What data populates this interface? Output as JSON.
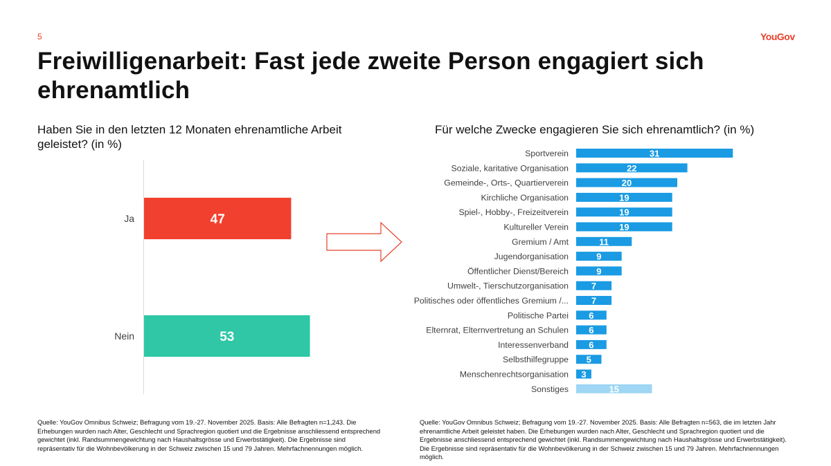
{
  "page": {
    "number": "5",
    "logo": "YouGov",
    "title": "Freiwilligenarbeit: Fast jede zweite Person engagiert sich ehrenamtlich"
  },
  "left": {
    "subtitle": "Haben Sie in den letzten 12 Monaten ehrenamtliche Arbeit geleistet? (in %)",
    "source": "Quelle: YouGov Omnibus Schweiz; Befragung vom 19.-27. November 2025. Basis: Alle Befragten n=1,243. Die Erhebungen wurden nach Alter, Geschlecht und Sprachregion quotiert und die Ergebnisse anschliessend entsprechend gewichtet (inkl. Randsummengewichtung nach Haushaltsgrösse und Erwerbstätigkeit). Die Ergebnisse sind repräsentativ für die Wohnbevölkerung in der Schweiz zwischen 15 und 79 Jahren. Mehrfachnennungen möglich."
  },
  "right": {
    "subtitle": "Für welche Zwecke engagieren Sie sich ehrenamtlich? (in %)",
    "source": "Quelle: YouGov Omnibus Schweiz; Befragung vom 19.-27. November 2025. Basis: Alle Befragten n=563, die im letzten Jahr ehrenamtliche Arbeit geleistet haben. Die Erhebungen wurden nach Alter, Geschlecht und Sprachregion quotiert und die Ergebnisse anschliessend entsprechend gewichtet (inkl. Randsummengewichtung nach Haushaltsgrösse und Erwerbstätigkeit). Die Ergebnisse sind repräsentativ für die Wohnbevölkerung in der Schweiz zwischen 15 und 79 Jahren. Mehrfachnennungen möglich."
  },
  "colors": {
    "ja": "#f2402f",
    "nein": "#2fc7a6",
    "bar": "#1a9be3",
    "other": "#9ed6f4",
    "accent": "#e8402a",
    "axis": "#d9d9d9"
  },
  "chart_data": [
    {
      "type": "bar",
      "orientation": "horizontal",
      "title": "Haben Sie in den letzten 12 Monaten ehrenamtliche Arbeit geleistet? (in %)",
      "categories": [
        "Ja",
        "Nein"
      ],
      "values": [
        47,
        53
      ],
      "xlim": [
        0,
        100
      ],
      "unit": "%"
    },
    {
      "type": "bar",
      "orientation": "horizontal",
      "title": "Für welche Zwecke engagieren Sie sich ehrenamtlich? (in %)",
      "categories": [
        "Sportverein",
        "Soziale, karitative Organisation",
        "Gemeinde-, Orts-, Quartierverein",
        "Kirchliche Organisation",
        "Spiel-, Hobby-, Freizeitverein",
        "Kultureller Verein",
        "Gremium / Amt",
        "Jugendorganisation",
        "Öffentlicher Dienst/Bereich",
        "Umwelt-, Tierschutzorganisation",
        "Politisches oder öffentliches Gremium /...",
        "Politische Partei",
        "Elternrat, Elternvertretung an Schulen",
        "Interessenverband",
        "Selbsthilfegruppe",
        "Menschenrechtsorganisation",
        "Sonstiges"
      ],
      "values": [
        31,
        22,
        20,
        19,
        19,
        19,
        11,
        9,
        9,
        7,
        7,
        6,
        6,
        6,
        5,
        3,
        15
      ],
      "xlim": [
        0,
        100
      ],
      "unit": "%"
    }
  ]
}
